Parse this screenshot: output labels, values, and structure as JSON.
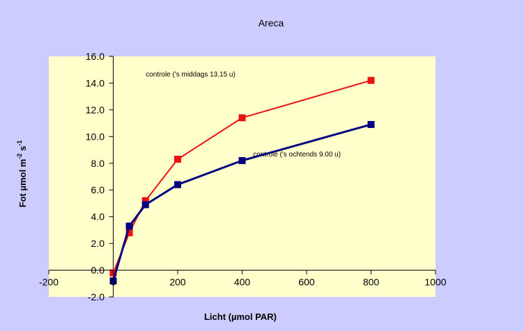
{
  "chart_data": {
    "type": "line",
    "title": "Areca",
    "xlabel": "Licht (µmol PAR)",
    "ylabel": {
      "main": "Fot µmol m",
      "sup1": "-2",
      "mid": " s",
      "sup2": "-1"
    },
    "xlim": [
      -200,
      1000
    ],
    "ylim": [
      -2,
      16
    ],
    "xticks": [
      -200,
      0,
      200,
      400,
      600,
      800,
      1000
    ],
    "yticks": [
      -2,
      0,
      2,
      4,
      6,
      8,
      10,
      12,
      14,
      16
    ],
    "x_tick_labels": [
      "-200",
      "0",
      "200",
      "400",
      "600",
      "800",
      "1000"
    ],
    "y_tick_labels": [
      "-2.0",
      "0.0",
      "2.0",
      "4.0",
      "6.0",
      "8.0",
      "10.0",
      "12.0",
      "14.0",
      "16.0"
    ],
    "grid": false,
    "background_color": "#ccccff",
    "plot_area_color": "#ffffcc",
    "series": [
      {
        "color": "#ee1111",
        "x": [
          0,
          50,
          100,
          200,
          400,
          800
        ],
        "y": [
          -0.2,
          2.8,
          5.2,
          8.3,
          11.4,
          14.2
        ]
      },
      {
        "color": "#000080",
        "x": [
          0,
          50,
          100,
          200,
          400,
          800
        ],
        "y": [
          -0.8,
          3.3,
          4.9,
          6.4,
          8.2,
          10.9
        ]
      }
    ],
    "annotations": [
      {
        "text": "controle ('s middags 13.15 u)",
        "x": 240,
        "y": 14.5
      },
      {
        "text": "controle ('s ochtends 9.00 u)",
        "x": 570,
        "y": 8.5
      }
    ]
  }
}
